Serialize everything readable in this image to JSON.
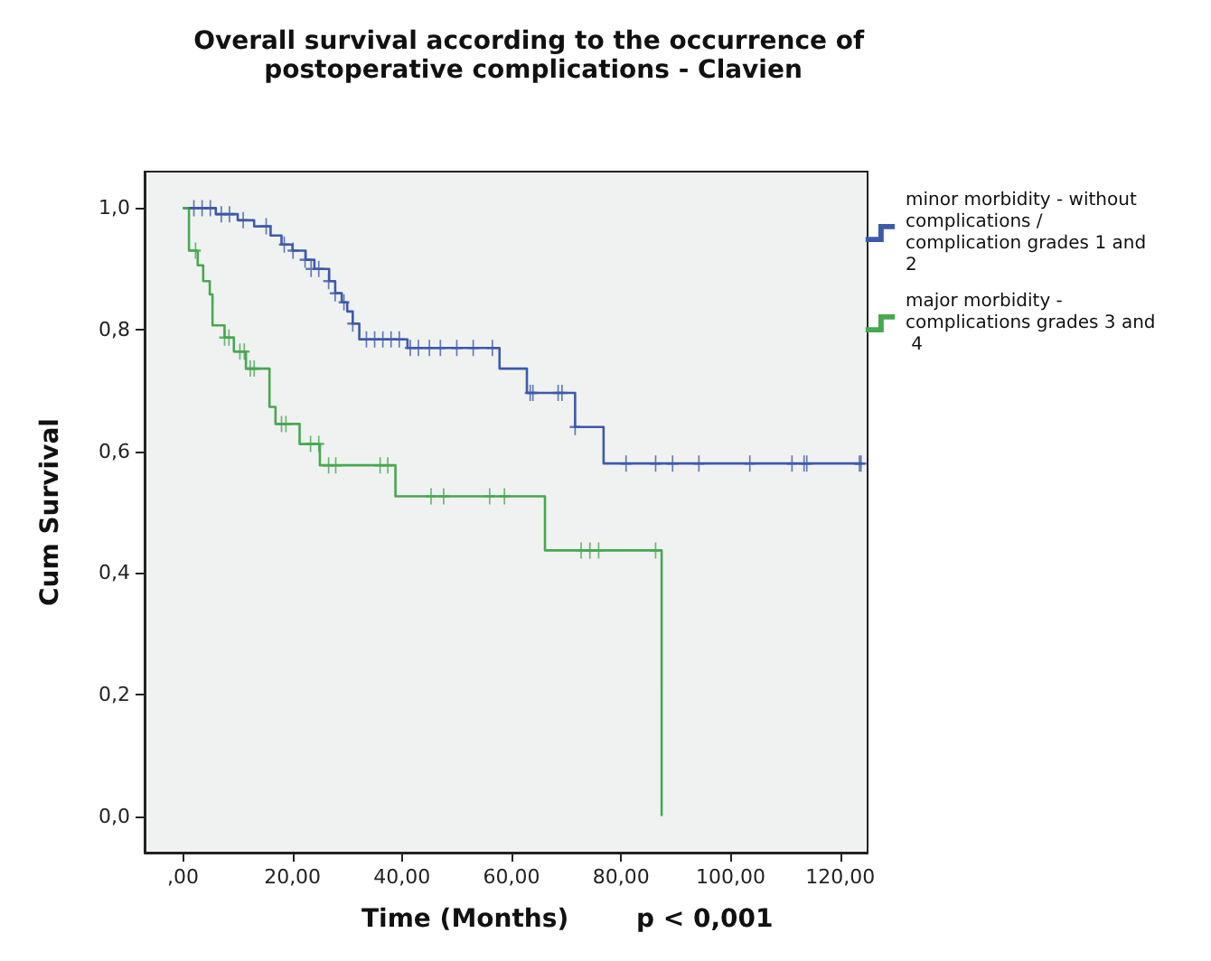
{
  "chart_data": {
    "type": "step",
    "title": "Overall survival according to the occurrence of postoperative complications - Clavien",
    "xlabel": "Time (Months)",
    "ylabel": "Cum Survival",
    "annotations": [
      "p < 0,001"
    ],
    "xlim": [
      -7,
      125
    ],
    "ylim": [
      -0.06,
      1.06
    ],
    "xticks": [
      {
        "value": 0,
        "label": ",00"
      },
      {
        "value": 20,
        "label": "20,00"
      },
      {
        "value": 40,
        "label": "40,00"
      },
      {
        "value": 60,
        "label": "60,00"
      },
      {
        "value": 80,
        "label": "80,00"
      },
      {
        "value": 100,
        "label": "100,00"
      },
      {
        "value": 120,
        "label": "120,00"
      }
    ],
    "yticks": [
      {
        "value": 0,
        "label": "0,0"
      },
      {
        "value": 0.2,
        "label": "0,2"
      },
      {
        "value": 0.4,
        "label": "0,4"
      },
      {
        "value": 0.6,
        "label": "0,6"
      },
      {
        "value": 0.8,
        "label": "0,8"
      },
      {
        "value": 1,
        "label": "1,0"
      }
    ],
    "grid": false,
    "legend": "right",
    "line_style": "solid",
    "series": [
      {
        "name": "minor morbidity - without complications / complication grades 1 and 2",
        "color": "#3d5aa8",
        "marker": "none",
        "x": [
          0,
          6,
          10,
          13,
          16,
          18,
          20,
          22.4,
          24,
          26.7,
          27.8,
          29,
          30,
          31,
          32.2,
          41,
          57.8,
          62.8,
          71.6,
          76.8,
          124
        ],
        "values": [
          1,
          0.99,
          0.98,
          0.97,
          0.955,
          0.94,
          0.93,
          0.915,
          0.9,
          0.88,
          0.86,
          0.845,
          0.83,
          0.81,
          0.784,
          0.77,
          0.736,
          0.696,
          0.64,
          0.58,
          0.58
        ]
      },
      {
        "name": "major morbidity - complications grades 3 and 4",
        "color": "#47a84f",
        "marker": "none",
        "x": [
          0,
          1.1,
          2.7,
          3.7,
          4.9,
          5.4,
          7.6,
          9.3,
          11.5,
          15.8,
          16.9,
          21.3,
          25,
          38.8,
          66.1,
          87.4
        ],
        "values": [
          1,
          0.93,
          0.906,
          0.88,
          0.858,
          0.807,
          0.787,
          0.764,
          0.736,
          0.673,
          0.645,
          0.612,
          0.577,
          0.526,
          0.437,
          0
        ]
      },
      {
        "type": "scatter",
        "color": "#3d5aa8",
        "marker": "cross",
        "x": [
          2,
          3.5,
          5,
          7,
          8.5,
          11,
          15.2,
          18.5,
          20.1,
          22.3,
          23.4,
          24.8,
          26.6,
          27.8,
          29.4,
          31,
          33.5,
          35,
          36.5,
          38,
          39.5,
          41.5,
          43,
          45,
          47,
          50,
          53,
          56.5,
          63.4,
          63.9,
          68.5,
          69.2,
          71.6,
          80.9,
          86.3,
          89.4,
          94.2,
          103.5,
          111.2,
          113.4,
          113.9,
          123.5,
          123.8
        ],
        "values": [
          1,
          1,
          1,
          0.99,
          0.99,
          0.98,
          0.97,
          0.94,
          0.93,
          0.915,
          0.9,
          0.9,
          0.88,
          0.86,
          0.845,
          0.81,
          0.784,
          0.784,
          0.784,
          0.784,
          0.784,
          0.77,
          0.77,
          0.77,
          0.77,
          0.77,
          0.77,
          0.77,
          0.696,
          0.696,
          0.696,
          0.696,
          0.64,
          0.58,
          0.58,
          0.58,
          0.58,
          0.58,
          0.58,
          0.58,
          0.58,
          0.58,
          0.58
        ]
      },
      {
        "type": "scatter",
        "color": "#47a84f",
        "marker": "cross",
        "x": [
          2.3,
          7.6,
          8.4,
          10.4,
          11.2,
          12.3,
          13,
          18,
          18.8,
          23.3,
          24.8,
          26.6,
          27.9,
          36,
          37.4,
          45.3,
          47.6,
          56,
          58.7,
          72.7,
          74.3,
          75.9,
          86.3
        ],
        "values": [
          0.93,
          0.787,
          0.787,
          0.764,
          0.764,
          0.736,
          0.736,
          0.645,
          0.645,
          0.612,
          0.612,
          0.577,
          0.577,
          0.577,
          0.577,
          0.526,
          0.526,
          0.526,
          0.526,
          0.437,
          0.437,
          0.437,
          0.437
        ]
      }
    ]
  }
}
